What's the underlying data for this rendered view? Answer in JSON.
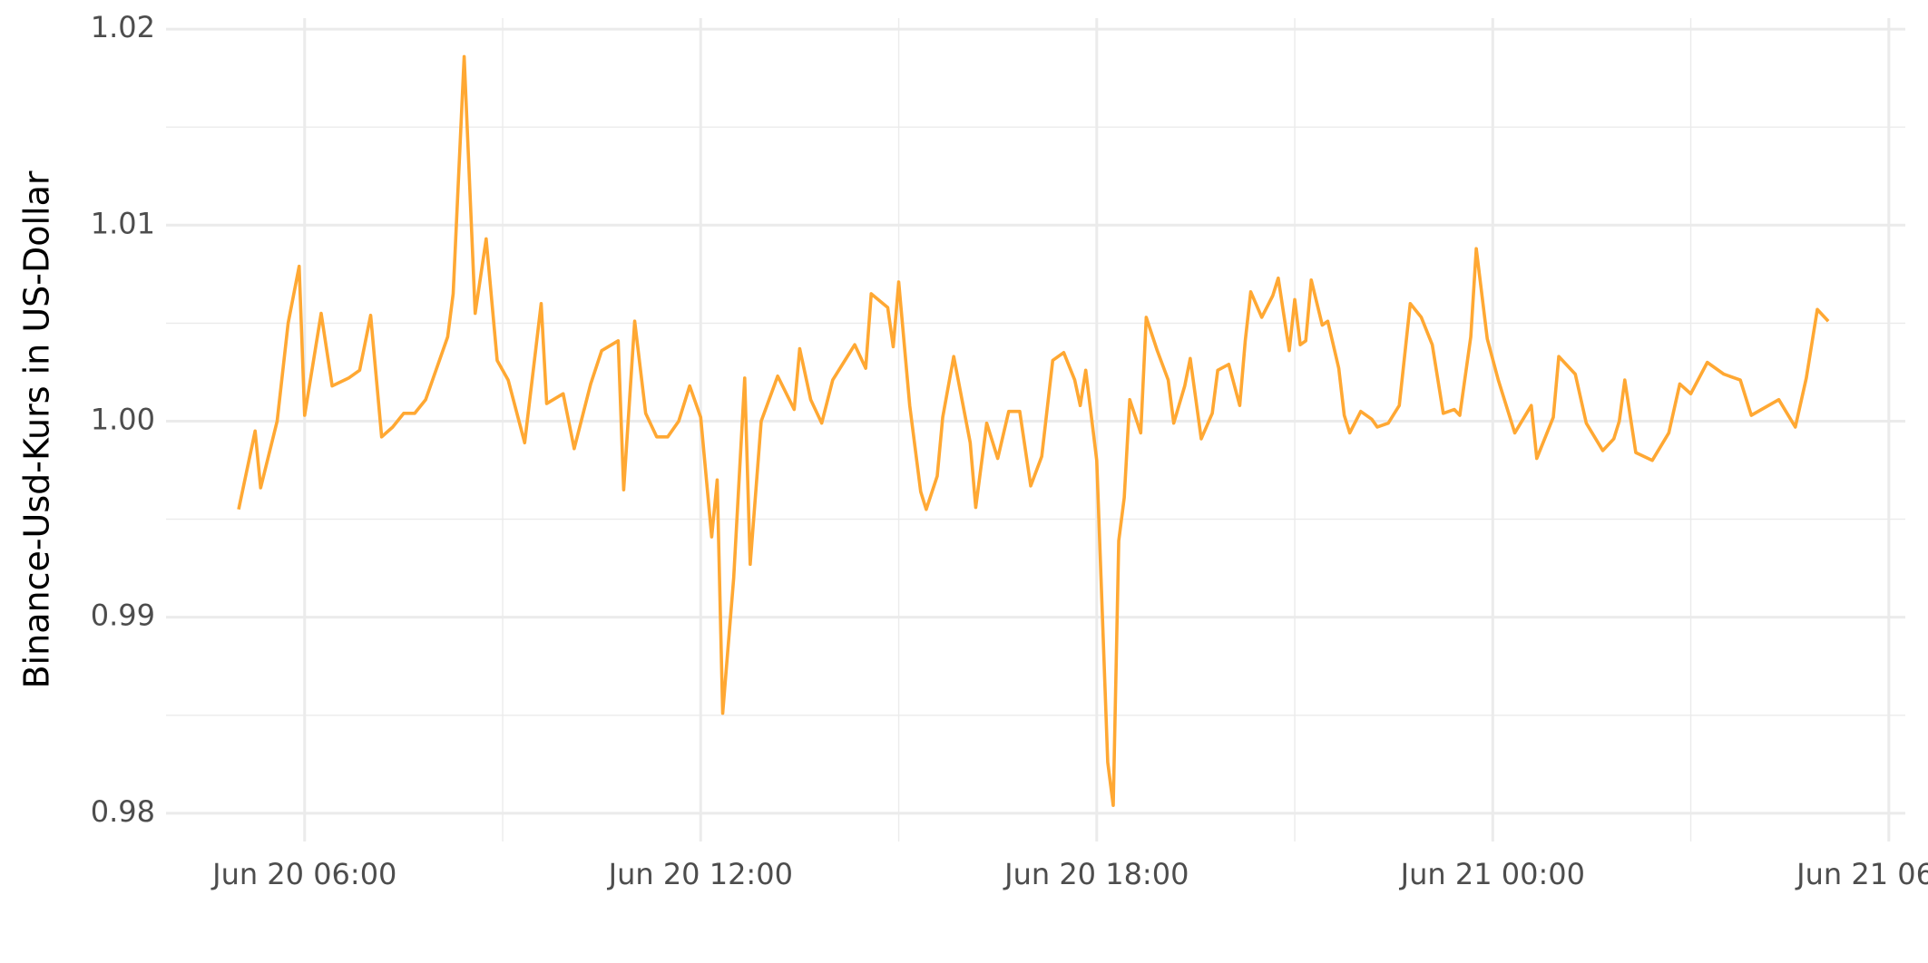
{
  "chart_data": {
    "type": "line",
    "y_label": "Binance-Usd-Kurs in US-Dollar",
    "x": [
      "Jun 20 05:00",
      "Jun 20 05:15",
      "Jun 20 05:20",
      "Jun 20 05:35",
      "Jun 20 05:45",
      "Jun 20 05:55",
      "Jun 20 06:00",
      "Jun 20 06:15",
      "Jun 20 06:25",
      "Jun 20 06:40",
      "Jun 20 06:50",
      "Jun 20 07:00",
      "Jun 20 07:10",
      "Jun 20 07:20",
      "Jun 20 07:30",
      "Jun 20 07:40",
      "Jun 20 07:50",
      "Jun 20 08:10",
      "Jun 20 08:15",
      "Jun 20 08:25",
      "Jun 20 08:35",
      "Jun 20 08:45",
      "Jun 20 08:55",
      "Jun 20 09:05",
      "Jun 20 09:20",
      "Jun 20 09:35",
      "Jun 20 09:40",
      "Jun 20 09:55",
      "Jun 20 10:05",
      "Jun 20 10:20",
      "Jun 20 10:30",
      "Jun 20 10:45",
      "Jun 20 10:50",
      "Jun 20 11:00",
      "Jun 20 11:10",
      "Jun 20 11:20",
      "Jun 20 11:30",
      "Jun 20 11:40",
      "Jun 20 11:50",
      "Jun 20 12:00",
      "Jun 20 12:10",
      "Jun 20 12:15",
      "Jun 20 12:20",
      "Jun 20 12:30",
      "Jun 20 12:40",
      "Jun 20 12:45",
      "Jun 20 12:55",
      "Jun 20 13:10",
      "Jun 20 13:25",
      "Jun 20 13:30",
      "Jun 20 13:40",
      "Jun 20 13:50",
      "Jun 20 14:00",
      "Jun 20 14:10",
      "Jun 20 14:20",
      "Jun 20 14:30",
      "Jun 20 14:35",
      "Jun 20 14:50",
      "Jun 20 14:55",
      "Jun 20 15:00",
      "Jun 20 15:10",
      "Jun 20 15:20",
      "Jun 20 15:25",
      "Jun 20 15:35",
      "Jun 20 15:40",
      "Jun 20 15:50",
      "Jun 20 16:05",
      "Jun 20 16:10",
      "Jun 20 16:20",
      "Jun 20 16:30",
      "Jun 20 16:40",
      "Jun 20 16:50",
      "Jun 20 17:00",
      "Jun 20 17:10",
      "Jun 20 17:20",
      "Jun 20 17:30",
      "Jun 20 17:40",
      "Jun 20 17:45",
      "Jun 20 17:50",
      "Jun 20 18:00",
      "Jun 20 18:10",
      "Jun 20 18:15",
      "Jun 20 18:20",
      "Jun 20 18:25",
      "Jun 20 18:30",
      "Jun 20 18:40",
      "Jun 20 18:45",
      "Jun 20 18:55",
      "Jun 20 19:05",
      "Jun 20 19:10",
      "Jun 20 19:20",
      "Jun 20 19:25",
      "Jun 20 19:35",
      "Jun 20 19:45",
      "Jun 20 19:50",
      "Jun 20 20:00",
      "Jun 20 20:10",
      "Jun 20 20:15",
      "Jun 20 20:20",
      "Jun 20 20:30",
      "Jun 20 20:40",
      "Jun 20 20:45",
      "Jun 20 20:55",
      "Jun 20 21:00",
      "Jun 20 21:05",
      "Jun 20 21:10",
      "Jun 20 21:15",
      "Jun 20 21:25",
      "Jun 20 21:30",
      "Jun 20 21:40",
      "Jun 20 21:45",
      "Jun 20 21:50",
      "Jun 20 22:00",
      "Jun 20 22:10",
      "Jun 20 22:15",
      "Jun 20 22:25",
      "Jun 20 22:35",
      "Jun 20 22:45",
      "Jun 20 22:55",
      "Jun 20 23:05",
      "Jun 20 23:15",
      "Jun 20 23:25",
      "Jun 20 23:30",
      "Jun 20 23:40",
      "Jun 20 23:45",
      "Jun 20 23:55",
      "Jun 21 00:05",
      "Jun 21 00:20",
      "Jun 21 00:35",
      "Jun 21 00:40",
      "Jun 21 00:55",
      "Jun 21 01:00",
      "Jun 21 01:15",
      "Jun 21 01:25",
      "Jun 21 01:40",
      "Jun 21 01:50",
      "Jun 21 01:55",
      "Jun 21 02:00",
      "Jun 21 02:10",
      "Jun 21 02:25",
      "Jun 21 02:40",
      "Jun 21 02:50",
      "Jun 21 03:00",
      "Jun 21 03:15",
      "Jun 21 03:30",
      "Jun 21 03:45",
      "Jun 21 03:55",
      "Jun 21 04:20",
      "Jun 21 04:35",
      "Jun 21 04:45",
      "Jun 21 04:55",
      "Jun 21 05:05"
    ],
    "values": [
      0.9955,
      0.9995,
      0.9966,
      1.0,
      1.005,
      1.0079,
      1.0003,
      1.0055,
      1.0018,
      1.0022,
      1.0026,
      1.0054,
      0.9992,
      0.9997,
      1.0004,
      1.0004,
      1.0011,
      1.0043,
      1.0065,
      1.0186,
      1.0055,
      1.0093,
      1.0031,
      1.0021,
      0.9989,
      1.006,
      1.0009,
      1.0014,
      0.9986,
      1.0019,
      1.0036,
      1.0041,
      0.9965,
      1.0051,
      1.0004,
      0.9992,
      0.9992,
      1.0,
      1.0018,
      1.0002,
      0.9941,
      0.997,
      0.9851,
      0.992,
      1.0022,
      0.9927,
      1.0,
      1.0023,
      1.0006,
      1.0037,
      1.0011,
      0.9999,
      1.0021,
      1.003,
      1.0039,
      1.0027,
      1.0065,
      1.0058,
      1.0038,
      1.0071,
      1.0008,
      0.9964,
      0.9955,
      0.9972,
      1.0002,
      1.0033,
      0.9989,
      0.9956,
      0.9999,
      0.9981,
      1.0005,
      1.0005,
      0.9967,
      0.9982,
      1.0031,
      1.0035,
      1.0021,
      1.0008,
      1.0026,
      0.998,
      0.9826,
      0.9804,
      0.9939,
      0.9961,
      1.0011,
      0.9994,
      1.0053,
      1.0036,
      1.0021,
      0.9999,
      1.0018,
      1.0032,
      0.9991,
      1.0004,
      1.0026,
      1.0029,
      1.0008,
      1.0041,
      1.0066,
      1.0053,
      1.0064,
      1.0073,
      1.0036,
      1.0062,
      1.0039,
      1.0041,
      1.0072,
      1.0049,
      1.0051,
      1.0027,
      1.0003,
      0.9994,
      1.0005,
      1.0001,
      0.9997,
      0.9999,
      1.0008,
      1.006,
      1.0053,
      1.0039,
      1.0004,
      1.0006,
      1.0003,
      1.0043,
      1.0088,
      1.0042,
      1.0021,
      0.9994,
      1.0008,
      0.9981,
      1.0002,
      1.0033,
      1.0024,
      0.9999,
      0.9985,
      0.9991,
      1.0,
      1.0021,
      0.9984,
      0.998,
      0.9994,
      1.0019,
      1.0014,
      1.003,
      1.0024,
      1.0021,
      1.0003,
      1.0011,
      0.9997,
      1.0022,
      1.0057,
      1.0051
    ],
    "color": "#ffa833",
    "xlim": [
      "Jun 20 03:54",
      "Jun 21 06:15"
    ],
    "xticks": [
      "Jun 20 06:00",
      "Jun 20 12:00",
      "Jun 20 18:00",
      "Jun 21 00:00",
      "Jun 21 06:00"
    ],
    "ylim": [
      0.97856,
      1.02056
    ],
    "yticks": [
      0.98,
      0.99,
      {
        "value": 1,
        "label": "1.00"
      },
      1.01,
      1.02
    ],
    "grid": true
  }
}
